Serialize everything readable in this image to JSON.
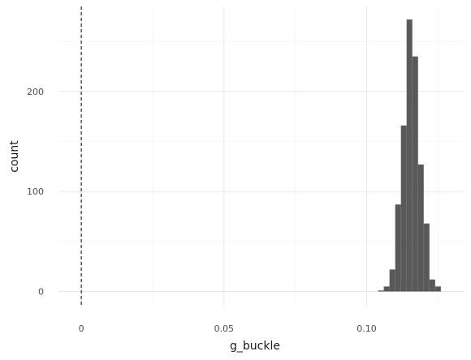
{
  "chart_data": {
    "type": "bar",
    "subtype": "histogram",
    "xlabel": "g_buckle",
    "ylabel": "count",
    "xlim": [
      -0.008,
      0.134
    ],
    "ylim": [
      -15,
      285
    ],
    "x_ticks": [
      0,
      0.05,
      0.1
    ],
    "x_tick_labels": [
      "0",
      "0.05",
      "0.10"
    ],
    "y_ticks": [
      0,
      100,
      200
    ],
    "y_tick_labels": [
      "0",
      "100",
      "200"
    ],
    "bin_width": 0.002,
    "bins": [
      {
        "x0": 0.104,
        "x1": 0.106,
        "count": 1
      },
      {
        "x0": 0.106,
        "x1": 0.108,
        "count": 5
      },
      {
        "x0": 0.108,
        "x1": 0.11,
        "count": 22
      },
      {
        "x0": 0.11,
        "x1": 0.112,
        "count": 87
      },
      {
        "x0": 0.112,
        "x1": 0.114,
        "count": 166
      },
      {
        "x0": 0.114,
        "x1": 0.116,
        "count": 272
      },
      {
        "x0": 0.116,
        "x1": 0.118,
        "count": 235
      },
      {
        "x0": 0.118,
        "x1": 0.12,
        "count": 127
      },
      {
        "x0": 0.12,
        "x1": 0.122,
        "count": 68
      },
      {
        "x0": 0.122,
        "x1": 0.124,
        "count": 12
      },
      {
        "x0": 0.124,
        "x1": 0.126,
        "count": 5
      }
    ],
    "reference_line": {
      "x": 0,
      "style": "dashed",
      "color": "#000000"
    },
    "bar_color": "#595959",
    "grid": true,
    "legend": "none"
  }
}
